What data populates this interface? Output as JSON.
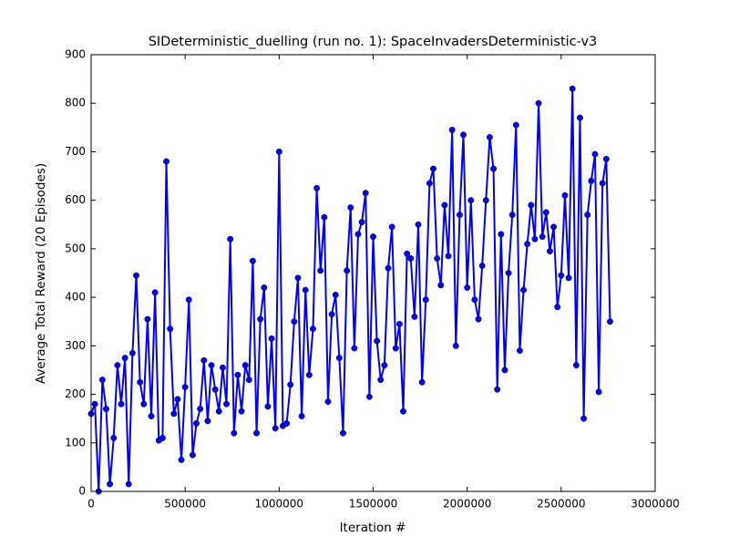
{
  "chart_data": {
    "type": "line",
    "title": "SIDeterministic_duelling (run no. 1): SpaceInvadersDeterministic-v3",
    "xlabel": "Iteration #",
    "ylabel": "Average Total Reward (20 Episodes)",
    "x": [
      0,
      20000,
      40000,
      60000,
      80000,
      100000,
      120000,
      140000,
      160000,
      180000,
      200000,
      220000,
      240000,
      260000,
      280000,
      300000,
      320000,
      340000,
      360000,
      380000,
      400000,
      420000,
      440000,
      460000,
      480000,
      500000,
      520000,
      540000,
      560000,
      580000,
      600000,
      620000,
      640000,
      660000,
      680000,
      700000,
      720000,
      740000,
      760000,
      780000,
      800000,
      820000,
      840000,
      860000,
      880000,
      900000,
      920000,
      940000,
      960000,
      980000,
      1000000,
      1020000,
      1040000,
      1060000,
      1080000,
      1100000,
      1120000,
      1140000,
      1160000,
      1180000,
      1200000,
      1220000,
      1240000,
      1260000,
      1280000,
      1300000,
      1320000,
      1340000,
      1360000,
      1380000,
      1400000,
      1420000,
      1440000,
      1460000,
      1480000,
      1500000,
      1520000,
      1540000,
      1560000,
      1580000,
      1600000,
      1620000,
      1640000,
      1660000,
      1680000,
      1700000,
      1720000,
      1740000,
      1760000,
      1780000,
      1800000,
      1820000,
      1840000,
      1860000,
      1880000,
      1900000,
      1920000,
      1940000,
      1960000,
      1980000,
      2000000,
      2020000,
      2040000,
      2060000,
      2080000,
      2100000,
      2120000,
      2140000,
      2160000,
      2180000,
      2200000,
      2220000,
      2240000,
      2260000,
      2280000,
      2300000,
      2320000,
      2340000,
      2360000,
      2380000,
      2400000,
      2420000,
      2440000,
      2460000,
      2480000,
      2500000,
      2520000,
      2540000,
      2560000,
      2580000,
      2600000,
      2620000,
      2640000,
      2660000,
      2680000,
      2700000,
      2720000,
      2740000,
      2760000
    ],
    "series": [
      {
        "color": "#0000ff",
        "values": [
          160,
          180,
          0,
          230,
          170,
          15,
          110,
          260,
          180,
          275,
          15,
          285,
          445,
          225,
          180,
          355,
          155,
          410,
          105,
          110,
          680,
          335,
          160,
          190,
          65,
          215,
          395,
          75,
          140,
          170,
          270,
          145,
          260,
          210,
          165,
          255,
          180,
          520,
          120,
          240,
          165,
          260,
          230,
          475,
          120,
          355,
          420,
          175,
          315,
          130,
          700,
          135,
          140,
          220,
          350,
          440,
          155,
          415,
          240,
          335,
          625,
          455,
          565,
          185,
          365,
          405,
          275,
          120,
          455,
          585,
          295,
          530,
          555,
          615,
          195,
          525,
          310,
          230,
          260,
          460,
          545,
          295,
          345,
          165,
          490,
          480,
          360,
          550,
          225,
          395,
          635,
          665,
          480,
          425,
          590,
          485,
          745,
          300,
          570,
          735,
          420,
          600,
          395,
          355,
          465,
          600,
          730,
          665,
          210,
          530,
          250,
          450,
          570,
          755,
          290,
          415,
          510,
          590,
          520,
          800,
          525,
          575,
          495,
          545,
          380,
          445,
          610,
          440,
          830,
          260,
          770,
          150,
          570,
          640,
          695,
          205,
          635,
          685,
          350
        ]
      }
    ],
    "xlim": [
      0,
      3000000
    ],
    "ylim": [
      0,
      900
    ],
    "xticks": [
      0,
      500000,
      1000000,
      1500000,
      2000000,
      2500000,
      3000000
    ],
    "yticks": [
      0,
      100,
      200,
      300,
      400,
      500,
      600,
      700,
      800,
      900
    ]
  }
}
